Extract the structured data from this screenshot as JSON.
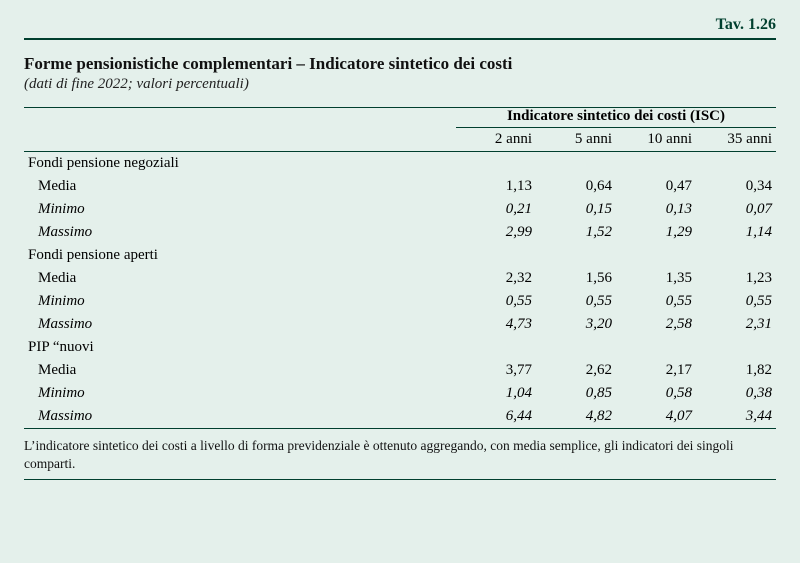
{
  "tav_label": "Tav. 1.26",
  "title": "Forme pensionistiche complementari – Indicatore sintetico dei costi",
  "subtitle": "(dati di fine 2022; valori percentuali)",
  "isc_header": "Indicatore sintetico dei costi (ISC)",
  "col_labels": [
    "2 anni",
    "5 anni",
    "10 anni",
    "35 anni"
  ],
  "sections": [
    {
      "name": "Fondi pensione negoziali",
      "rows": [
        {
          "label": "Media",
          "type": "media",
          "values": [
            "1,13",
            "0,64",
            "0,47",
            "0,34"
          ]
        },
        {
          "label": "Minimo",
          "type": "minmax",
          "values": [
            "0,21",
            "0,15",
            "0,13",
            "0,07"
          ]
        },
        {
          "label": "Massimo",
          "type": "minmax",
          "values": [
            "2,99",
            "1,52",
            "1,29",
            "1,14"
          ]
        }
      ]
    },
    {
      "name": "Fondi pensione aperti",
      "rows": [
        {
          "label": "Media",
          "type": "media",
          "values": [
            "2,32",
            "1,56",
            "1,35",
            "1,23"
          ]
        },
        {
          "label": "Minimo",
          "type": "minmax",
          "values": [
            "0,55",
            "0,55",
            "0,55",
            "0,55"
          ]
        },
        {
          "label": "Massimo",
          "type": "minmax",
          "values": [
            "4,73",
            "3,20",
            "2,58",
            "2,31"
          ]
        }
      ]
    },
    {
      "name": "PIP “nuovi",
      "rows": [
        {
          "label": "Media",
          "type": "media",
          "values": [
            "3,77",
            "2,62",
            "2,17",
            "1,82"
          ]
        },
        {
          "label": "Minimo",
          "type": "minmax",
          "values": [
            "1,04",
            "0,85",
            "0,58",
            "0,38"
          ]
        },
        {
          "label": "Massimo",
          "type": "minmax",
          "values": [
            "6,44",
            "4,82",
            "4,07",
            "3,44"
          ]
        }
      ]
    }
  ],
  "footnote": "L’indicatore sintetico dei costi a livello di forma previdenziale è ottenuto aggregando, con media semplice, gli indicatori dei singoli comparti.",
  "colors": {
    "background": "#e4f0eb",
    "rule": "#003f2e",
    "text": "#111111"
  }
}
